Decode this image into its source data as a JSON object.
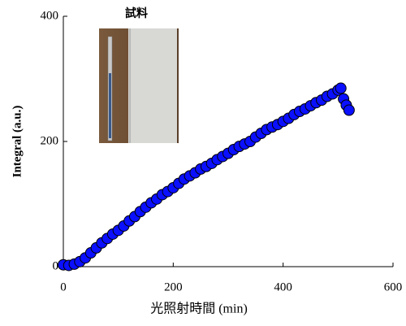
{
  "chart_data": {
    "type": "scatter",
    "x_label": "光照射時間 (min)",
    "y_label": "Integral (a.u.)",
    "annotation": "試料",
    "color": "#0a10ff",
    "x": [
      0,
      10,
      20,
      30,
      40,
      50,
      60,
      70,
      80,
      90,
      100,
      110,
      120,
      130,
      140,
      150,
      160,
      170,
      180,
      190,
      200,
      210,
      220,
      230,
      240,
      250,
      260,
      270,
      280,
      290,
      300,
      310,
      320,
      330,
      340,
      350,
      360,
      370,
      380,
      390,
      400,
      410,
      420,
      430,
      440,
      450,
      460,
      470,
      480,
      490,
      500,
      505,
      510,
      515,
      520
    ],
    "values": [
      3,
      2,
      4,
      8,
      14,
      22,
      30,
      38,
      45,
      52,
      58,
      65,
      73,
      80,
      88,
      95,
      102,
      108,
      115,
      120,
      126,
      133,
      140,
      145,
      150,
      156,
      160,
      165,
      171,
      176,
      181,
      187,
      192,
      196,
      200,
      207,
      213,
      219,
      223,
      227,
      232,
      237,
      243,
      248,
      252,
      257,
      262,
      266,
      272,
      276,
      282,
      285,
      268,
      258,
      250
    ],
    "xlim": [
      0,
      600
    ],
    "xticks": [
      0,
      200,
      400,
      600
    ],
    "ylim": [
      0,
      400
    ],
    "yticks": [
      0,
      200,
      400
    ]
  }
}
